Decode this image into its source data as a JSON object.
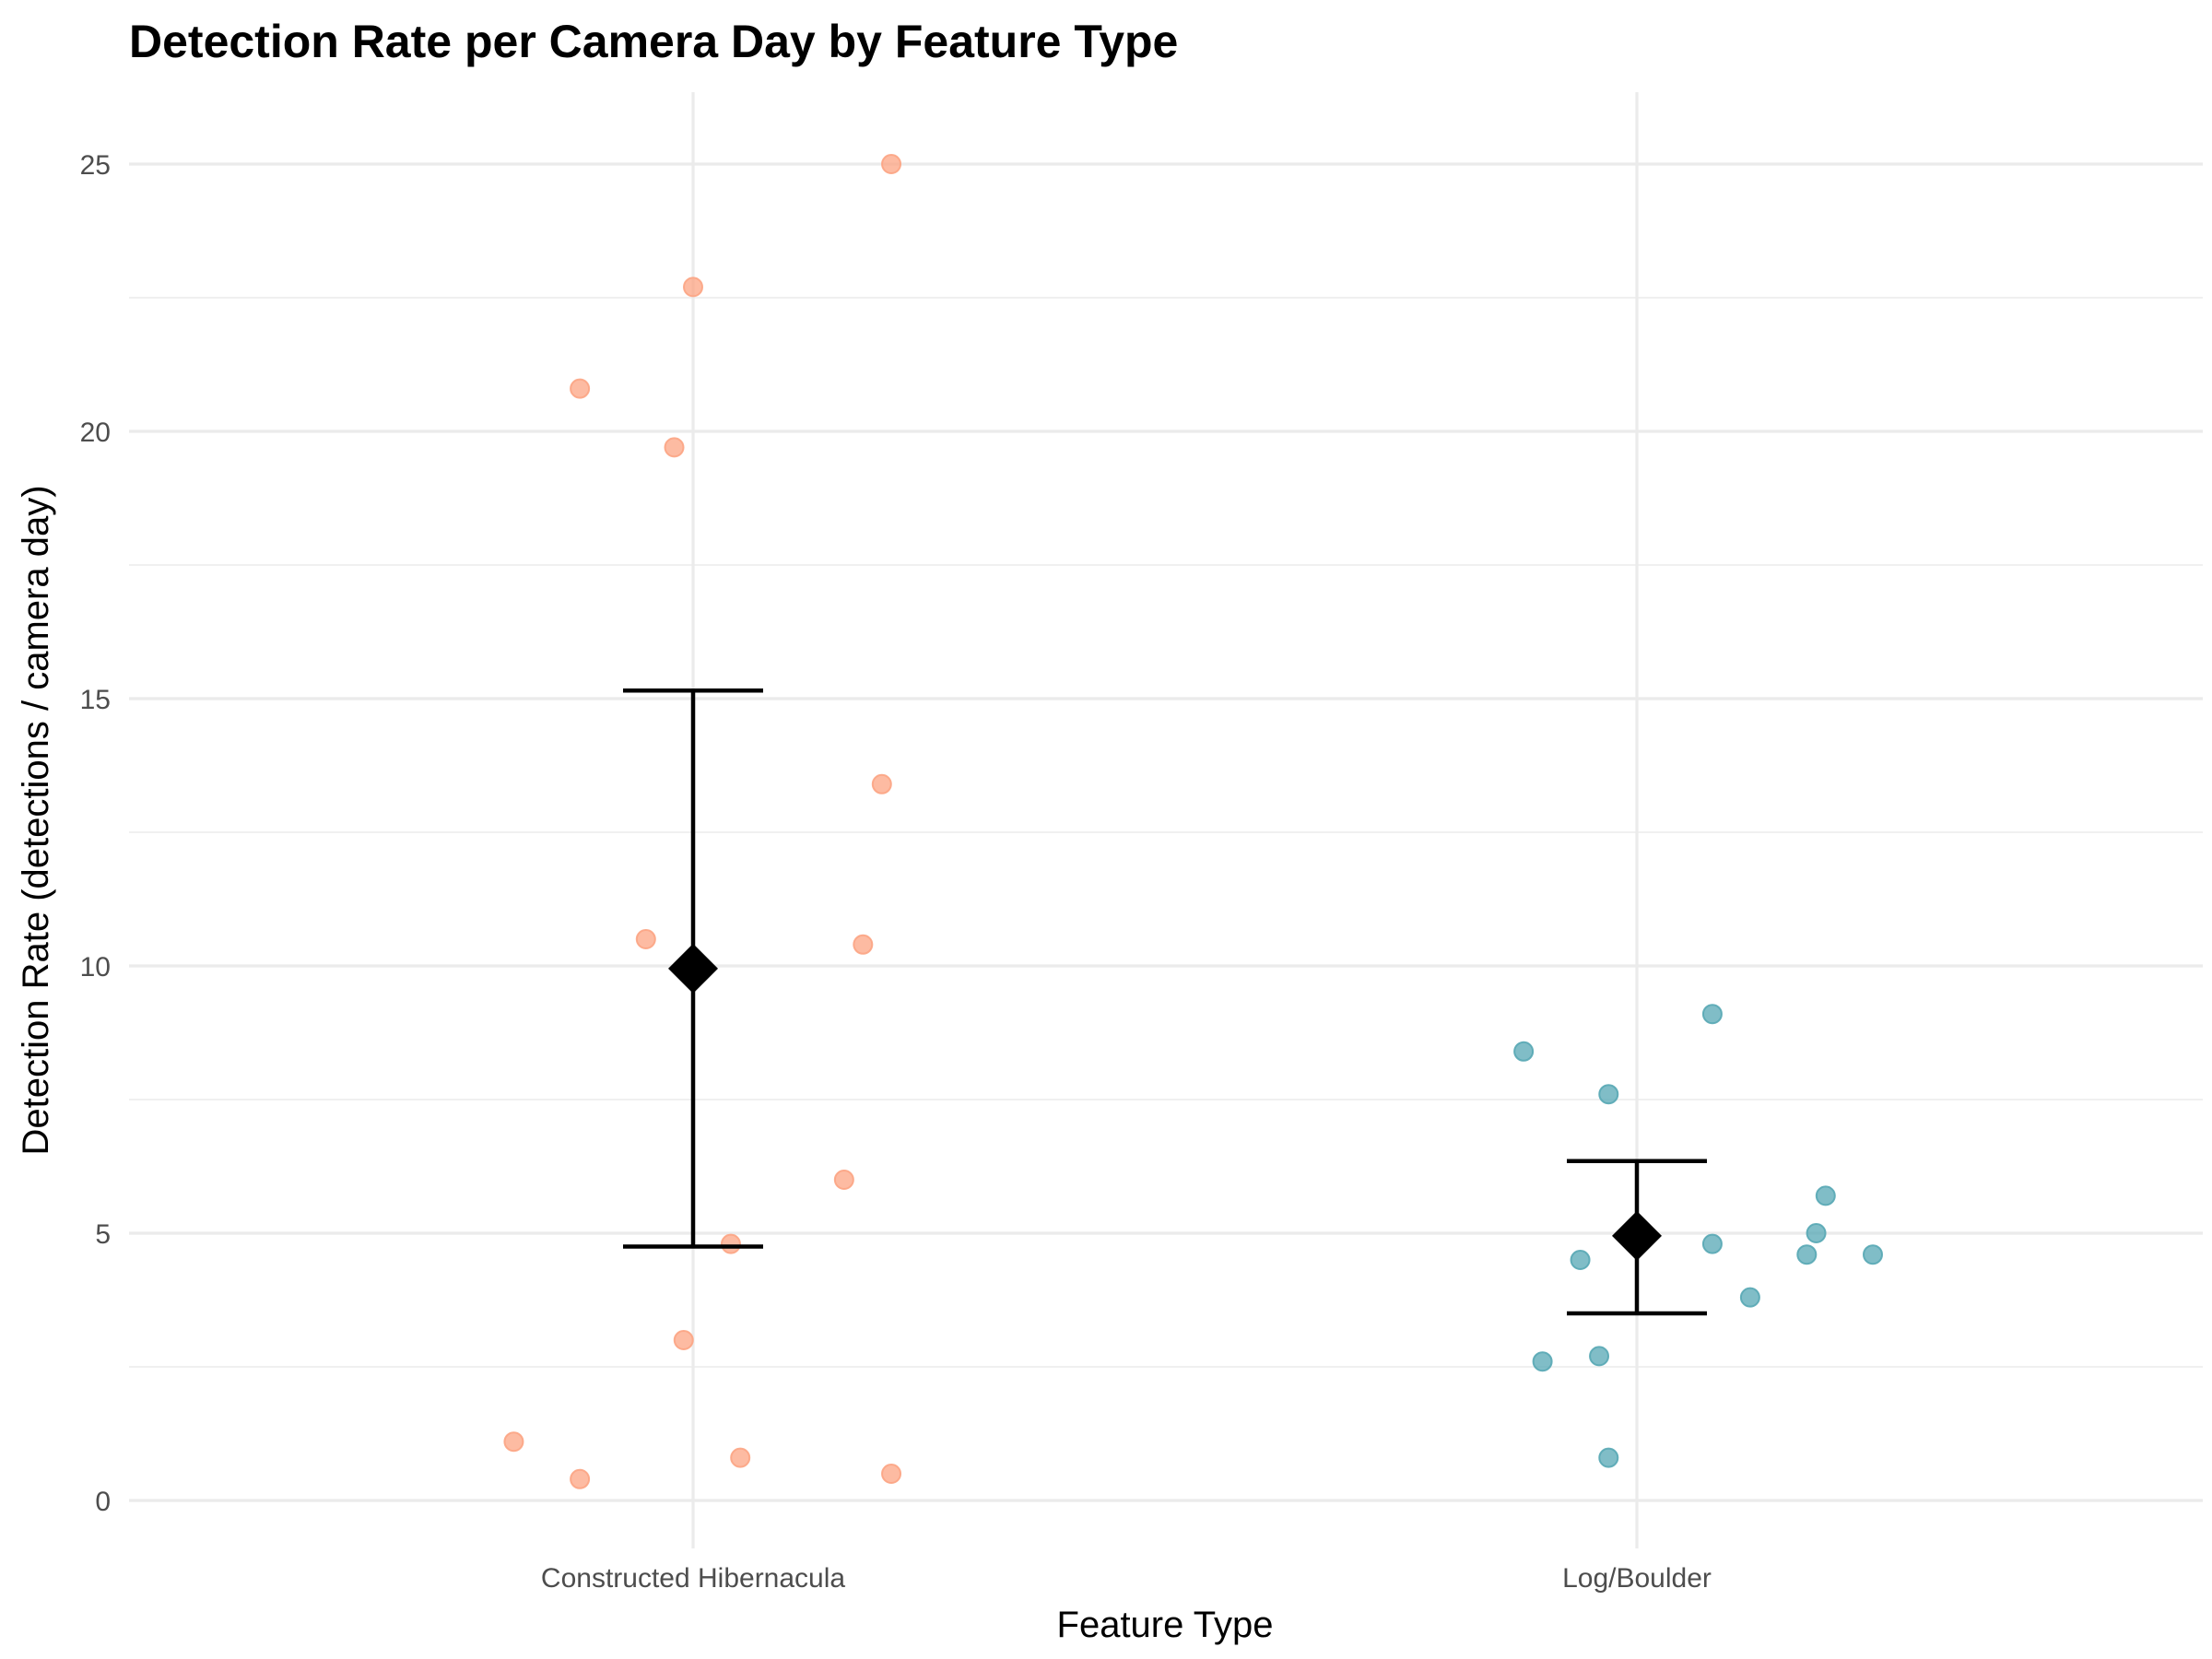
{
  "chart_data": {
    "type": "scatter",
    "title": "Detection Rate per Camera Day by Feature Type",
    "xlabel": "Feature Type",
    "ylabel": "Detection Rate (detections / camera day)",
    "categories": [
      "Constructed Hibernacula",
      "Log/Boulder"
    ],
    "ylim": [
      -0.8,
      26.3
    ],
    "yticks": [
      0,
      5,
      10,
      15,
      20,
      25
    ],
    "grid": true,
    "legend": "none",
    "colors": {
      "Constructed Hibernacula": "#FCA483",
      "Log/Boulder": "#56A7B4",
      "summary": "#000000"
    },
    "points": [
      {
        "category": "Constructed Hibernacula",
        "jitter": -0.19,
        "y": 1.1
      },
      {
        "category": "Constructed Hibernacula",
        "jitter": -0.12,
        "y": 0.4
      },
      {
        "category": "Constructed Hibernacula",
        "jitter": -0.12,
        "y": 20.8
      },
      {
        "category": "Constructed Hibernacula",
        "jitter": -0.05,
        "y": 10.5
      },
      {
        "category": "Constructed Hibernacula",
        "jitter": -0.02,
        "y": 19.7
      },
      {
        "category": "Constructed Hibernacula",
        "jitter": -0.01,
        "y": 3.0
      },
      {
        "category": "Constructed Hibernacula",
        "jitter": 0.0,
        "y": 22.7
      },
      {
        "category": "Constructed Hibernacula",
        "jitter": 0.04,
        "y": 4.8
      },
      {
        "category": "Constructed Hibernacula",
        "jitter": 0.05,
        "y": 0.8
      },
      {
        "category": "Constructed Hibernacula",
        "jitter": 0.16,
        "y": 6.0
      },
      {
        "category": "Constructed Hibernacula",
        "jitter": 0.18,
        "y": 10.4
      },
      {
        "category": "Constructed Hibernacula",
        "jitter": 0.2,
        "y": 13.4
      },
      {
        "category": "Constructed Hibernacula",
        "jitter": 0.21,
        "y": 0.5
      },
      {
        "category": "Constructed Hibernacula",
        "jitter": 0.21,
        "y": 25.0
      },
      {
        "category": "Log/Boulder",
        "jitter": -0.12,
        "y": 8.4
      },
      {
        "category": "Log/Boulder",
        "jitter": -0.1,
        "y": 2.6
      },
      {
        "category": "Log/Boulder",
        "jitter": -0.06,
        "y": 4.5
      },
      {
        "category": "Log/Boulder",
        "jitter": -0.04,
        "y": 2.7
      },
      {
        "category": "Log/Boulder",
        "jitter": -0.03,
        "y": 7.6
      },
      {
        "category": "Log/Boulder",
        "jitter": -0.03,
        "y": 0.8
      },
      {
        "category": "Log/Boulder",
        "jitter": 0.08,
        "y": 9.1
      },
      {
        "category": "Log/Boulder",
        "jitter": 0.08,
        "y": 4.8
      },
      {
        "category": "Log/Boulder",
        "jitter": 0.12,
        "y": 3.8
      },
      {
        "category": "Log/Boulder",
        "jitter": 0.18,
        "y": 4.6
      },
      {
        "category": "Log/Boulder",
        "jitter": 0.19,
        "y": 5.0
      },
      {
        "category": "Log/Boulder",
        "jitter": 0.2,
        "y": 5.7
      },
      {
        "category": "Log/Boulder",
        "jitter": 0.25,
        "y": 4.6
      }
    ],
    "summary": [
      {
        "category": "Constructed Hibernacula",
        "mean": 9.95,
        "lower": 4.75,
        "upper": 15.15
      },
      {
        "category": "Log/Boulder",
        "mean": 4.95,
        "lower": 3.5,
        "upper": 6.35
      }
    ]
  }
}
